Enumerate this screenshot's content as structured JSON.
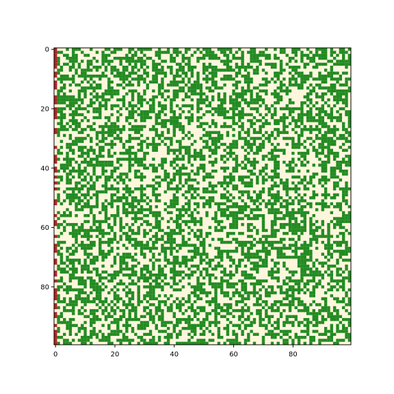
{
  "chart_data": {
    "type": "heatmap",
    "title": "",
    "xlabel": "",
    "ylabel": "",
    "grid_size": 100,
    "xlim": [
      -0.5,
      99.5
    ],
    "ylim": [
      99.5,
      -0.5
    ],
    "x_ticks": [
      0,
      20,
      40,
      60,
      80
    ],
    "y_ticks": [
      0,
      20,
      40,
      60,
      80
    ],
    "x_tick_labels": [
      "0",
      "20",
      "40",
      "60",
      "80"
    ],
    "y_tick_labels": [
      "0",
      "20",
      "40",
      "60",
      "80"
    ],
    "grid": false,
    "states": [
      {
        "value": 0,
        "color": "#fdf6dd"
      },
      {
        "value": 1,
        "color": "#228b22"
      },
      {
        "value": 2,
        "color": "#b22222"
      }
    ],
    "fill_fraction": 0.5,
    "burning_column": 0,
    "burning_fraction": 0.5,
    "random_seed": 7
  }
}
